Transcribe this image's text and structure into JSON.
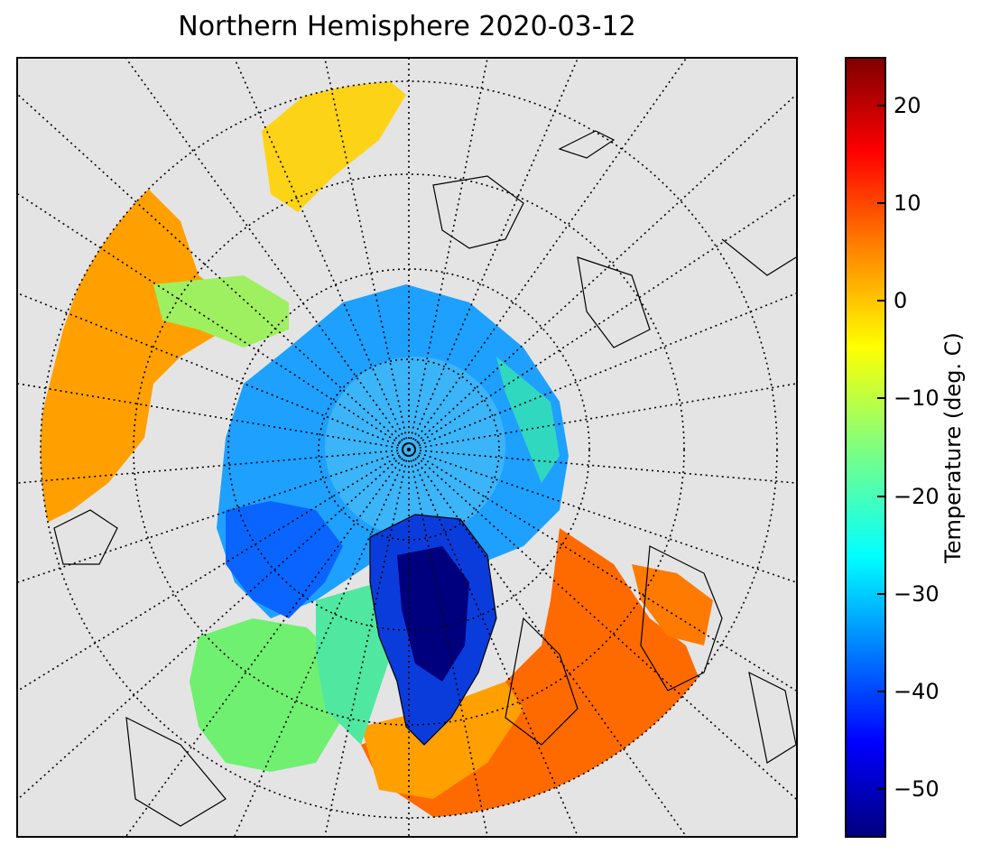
{
  "title": "Northern Hemisphere 2020-03-12",
  "colorbar": {
    "label": "Temperature (deg. C)",
    "min": -55,
    "max": 25,
    "ticks": [
      "20",
      "10",
      "0",
      "−10",
      "−20",
      "−30",
      "−40",
      "−50"
    ],
    "tick_values": [
      20,
      10,
      0,
      -10,
      -20,
      -30,
      -40,
      -50
    ],
    "colormap": "jet"
  },
  "map": {
    "projection": "north-polar-stereographic",
    "background_color": "#e4e4e4",
    "graticule": "dotted",
    "coastlines": true,
    "palette": {
      "very_cold": "#00007f",
      "cold": "#0a64ff",
      "arctic_ice": "#1ea0ff",
      "cool": "#40e0c8",
      "mild": "#70f070",
      "freezing": "#f8f000",
      "above_zero": "#ffa000",
      "warm": "#ff6000"
    }
  }
}
